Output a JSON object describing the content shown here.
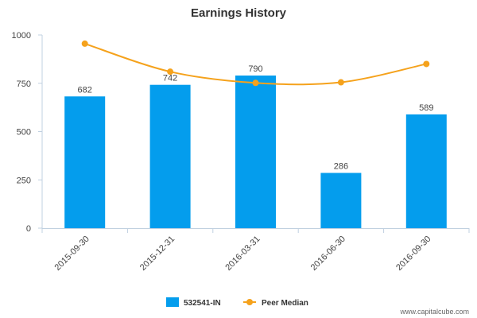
{
  "chart_data": {
    "type": "bar",
    "title": "Earnings History",
    "categories": [
      "2015-09-30",
      "2015-12-31",
      "2016-03-31",
      "2016-06-30",
      "2016-09-30"
    ],
    "series": [
      {
        "name": "532541-IN",
        "type": "bar",
        "values": [
          682,
          742,
          790,
          286,
          589
        ],
        "color": "#049ded"
      },
      {
        "name": "Peer Median",
        "type": "line",
        "values": [
          955,
          810,
          752,
          755,
          850
        ],
        "color": "#f5a21c"
      }
    ],
    "data_labels": [
      "682",
      "742",
      "790",
      "286",
      "589"
    ],
    "ylim": [
      0,
      1000
    ],
    "yticks": [
      0,
      250,
      500,
      750,
      1000
    ],
    "xlabel": "",
    "ylabel": "",
    "grid": false,
    "legend_position": "bottom-center",
    "watermark": "www.capitalcube.com"
  }
}
